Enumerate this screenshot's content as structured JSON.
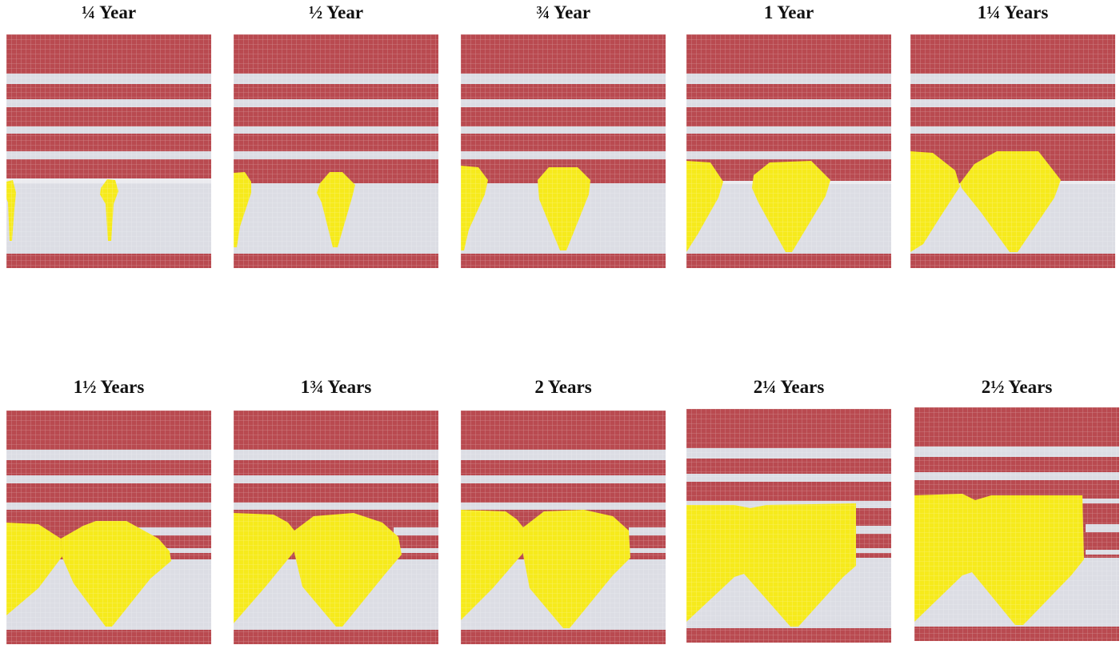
{
  "colors": {
    "clay": "#b94a50",
    "sand": "#dcdde4",
    "sand_light": "#ebebef",
    "plume": "#f6ea1c",
    "grid": "#ffffff"
  },
  "panels": [
    {
      "label": "¼ Year"
    },
    {
      "label": "½ Year"
    },
    {
      "label": "¾ Year"
    },
    {
      "label": "1 Year"
    },
    {
      "label": "1¼ Years"
    },
    {
      "label": "1½ Years"
    },
    {
      "label": "1¾ Years"
    },
    {
      "label": "2 Years"
    },
    {
      "label": "2¼ Years"
    },
    {
      "label": "2½ Years"
    }
  ]
}
